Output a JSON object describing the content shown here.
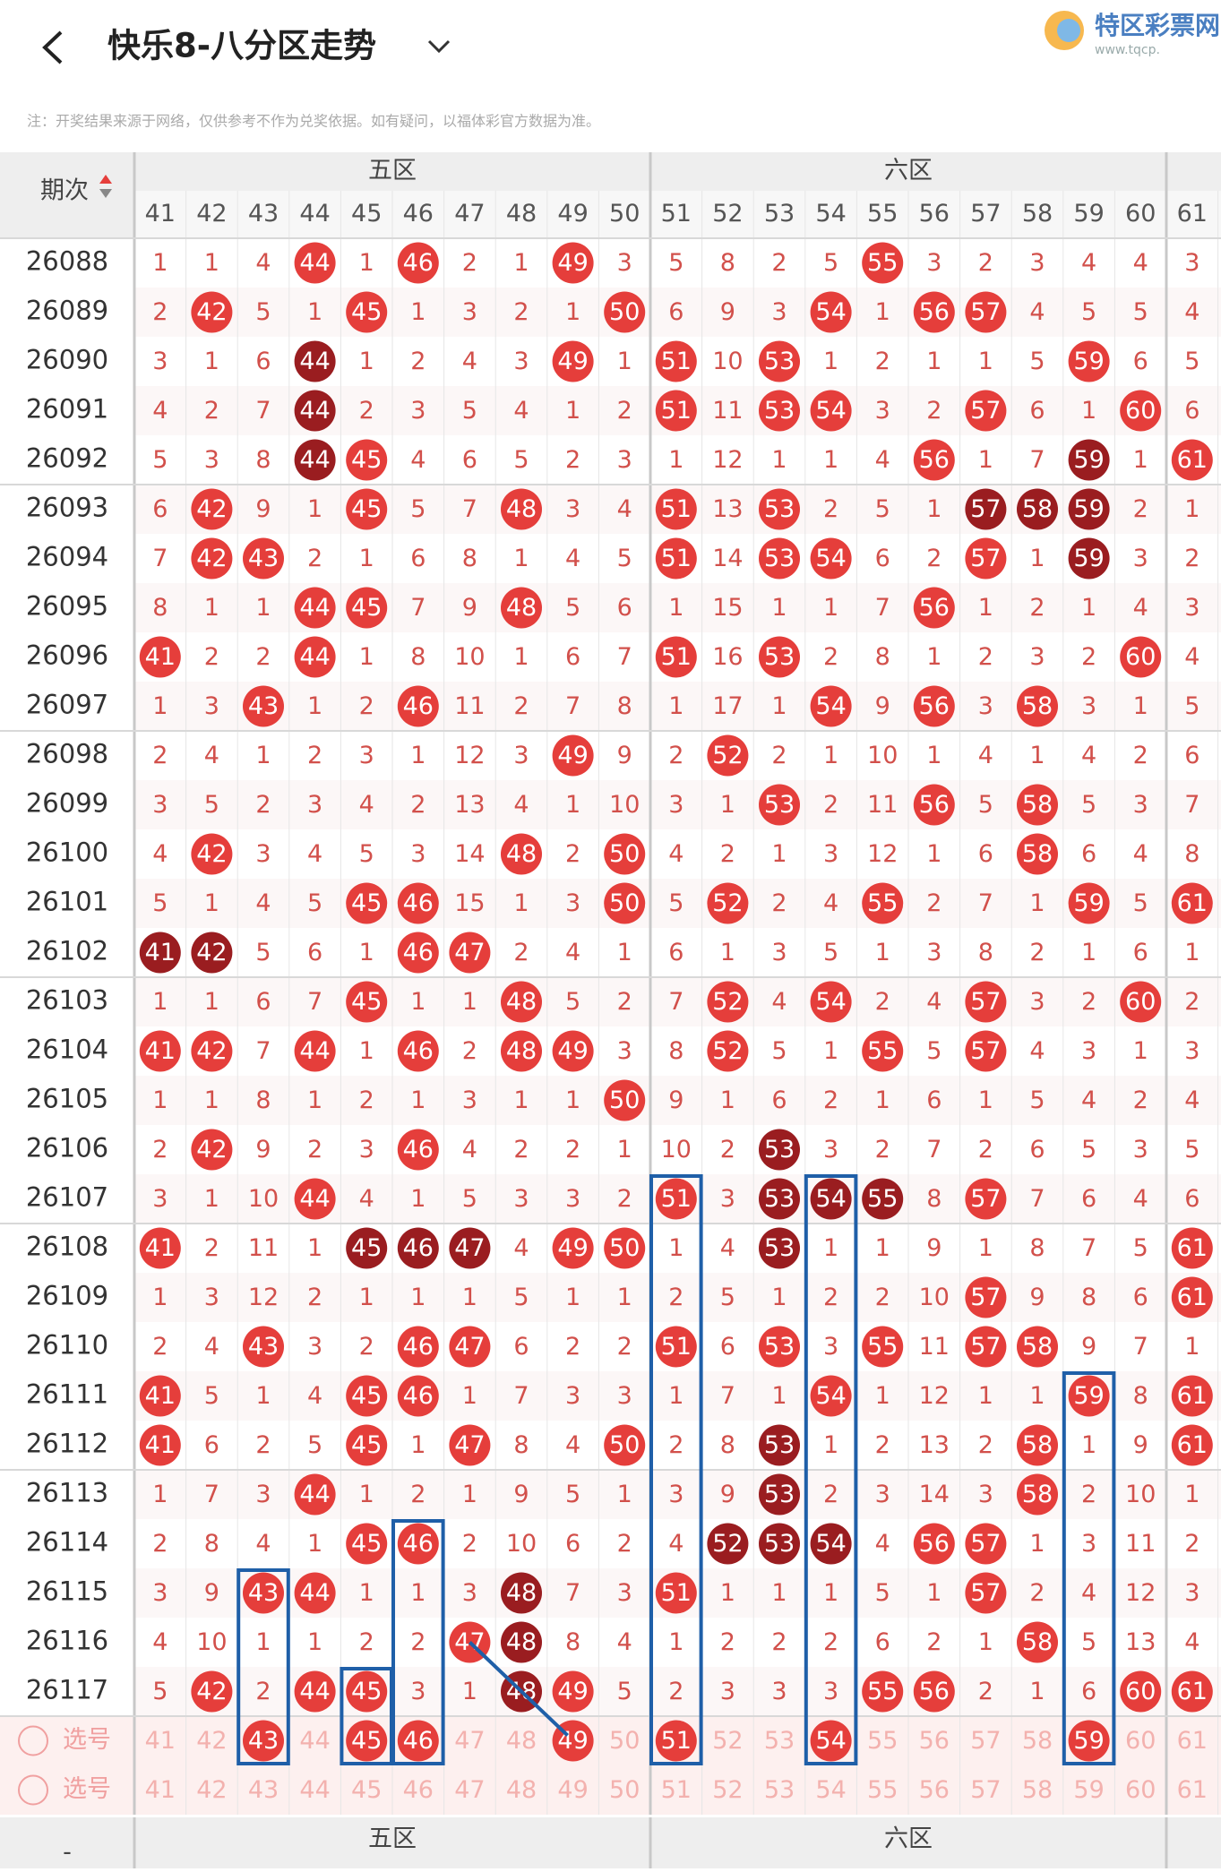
{
  "header": {
    "title": "快乐8-八分区走势",
    "logo": "特区彩票网",
    "logo_url": "www.tqcp."
  },
  "note": "注：开奖结果来源于网络，仅供参考不作为兑奖依据。如有疑问，以福体彩官方数据为准。",
  "table": {
    "period_label": "期次",
    "zones": [
      "五区",
      "六区"
    ],
    "columns": [
      41,
      42,
      43,
      44,
      45,
      46,
      47,
      48,
      49,
      50,
      51,
      52,
      53,
      54,
      55,
      56,
      57,
      58,
      59,
      60,
      61
    ],
    "rows": [
      {
        "period": "26088",
        "cells": [
          1,
          1,
          4,
          44,
          1,
          46,
          2,
          1,
          49,
          3,
          5,
          8,
          2,
          5,
          55,
          3,
          2,
          3,
          4,
          4,
          3
        ],
        "dark": []
      },
      {
        "period": "26089",
        "cells": [
          2,
          42,
          5,
          1,
          45,
          1,
          3,
          2,
          1,
          50,
          6,
          9,
          3,
          54,
          1,
          56,
          57,
          4,
          5,
          5,
          4
        ],
        "dark": []
      },
      {
        "period": "26090",
        "cells": [
          3,
          1,
          6,
          44,
          1,
          2,
          4,
          3,
          49,
          1,
          51,
          10,
          53,
          1,
          2,
          1,
          1,
          5,
          59,
          6,
          5
        ],
        "dark": [
          44
        ]
      },
      {
        "period": "26091",
        "cells": [
          4,
          2,
          7,
          44,
          2,
          3,
          5,
          4,
          1,
          2,
          51,
          11,
          53,
          54,
          3,
          2,
          57,
          6,
          1,
          60,
          6
        ],
        "dark": [
          44
        ]
      },
      {
        "period": "26092",
        "cells": [
          5,
          3,
          8,
          44,
          45,
          4,
          6,
          5,
          2,
          3,
          1,
          12,
          1,
          1,
          4,
          56,
          1,
          7,
          59,
          1,
          61
        ],
        "dark": [
          44,
          59
        ]
      },
      {
        "period": "26093",
        "cells": [
          6,
          42,
          9,
          1,
          45,
          5,
          7,
          48,
          3,
          4,
          51,
          13,
          53,
          2,
          5,
          1,
          57,
          58,
          59,
          2,
          1
        ],
        "dark": [
          57,
          58,
          59
        ]
      },
      {
        "period": "26094",
        "cells": [
          7,
          42,
          43,
          2,
          1,
          6,
          8,
          1,
          4,
          5,
          51,
          14,
          53,
          54,
          6,
          2,
          57,
          1,
          59,
          3,
          2
        ],
        "dark": [
          59
        ]
      },
      {
        "period": "26095",
        "cells": [
          8,
          1,
          1,
          44,
          45,
          7,
          9,
          48,
          5,
          6,
          1,
          15,
          1,
          1,
          7,
          56,
          1,
          2,
          1,
          4,
          3
        ],
        "dark": []
      },
      {
        "period": "26096",
        "cells": [
          41,
          2,
          2,
          44,
          1,
          8,
          10,
          1,
          6,
          7,
          51,
          16,
          53,
          2,
          8,
          1,
          2,
          3,
          2,
          60,
          4
        ],
        "dark": []
      },
      {
        "period": "26097",
        "cells": [
          1,
          3,
          43,
          1,
          2,
          46,
          11,
          2,
          7,
          8,
          1,
          17,
          1,
          54,
          9,
          56,
          3,
          58,
          3,
          1,
          5
        ],
        "dark": []
      },
      {
        "period": "26098",
        "cells": [
          2,
          4,
          1,
          2,
          3,
          1,
          12,
          3,
          49,
          9,
          2,
          52,
          2,
          1,
          10,
          1,
          4,
          1,
          4,
          2,
          6
        ],
        "dark": []
      },
      {
        "period": "26099",
        "cells": [
          3,
          5,
          2,
          3,
          4,
          2,
          13,
          4,
          1,
          10,
          3,
          1,
          53,
          2,
          11,
          56,
          5,
          58,
          5,
          3,
          7
        ],
        "dark": []
      },
      {
        "period": "26100",
        "cells": [
          4,
          42,
          3,
          4,
          5,
          3,
          14,
          48,
          2,
          50,
          4,
          2,
          1,
          3,
          12,
          1,
          6,
          58,
          6,
          4,
          8
        ],
        "dark": []
      },
      {
        "period": "26101",
        "cells": [
          5,
          1,
          4,
          5,
          45,
          46,
          15,
          1,
          3,
          50,
          5,
          52,
          2,
          4,
          55,
          2,
          7,
          1,
          59,
          5,
          61
        ],
        "dark": []
      },
      {
        "period": "26102",
        "cells": [
          41,
          42,
          5,
          6,
          1,
          46,
          47,
          2,
          4,
          1,
          6,
          1,
          3,
          5,
          1,
          3,
          8,
          2,
          1,
          6,
          1
        ],
        "dark": [
          41,
          42
        ]
      },
      {
        "period": "26103",
        "cells": [
          1,
          1,
          6,
          7,
          45,
          1,
          1,
          48,
          5,
          2,
          7,
          52,
          4,
          54,
          2,
          4,
          57,
          3,
          2,
          60,
          2
        ],
        "dark": []
      },
      {
        "period": "26104",
        "cells": [
          41,
          42,
          7,
          44,
          1,
          46,
          2,
          48,
          49,
          3,
          8,
          52,
          5,
          1,
          55,
          5,
          57,
          4,
          3,
          1,
          3
        ],
        "dark": []
      },
      {
        "period": "26105",
        "cells": [
          1,
          1,
          8,
          1,
          2,
          1,
          3,
          1,
          1,
          50,
          9,
          1,
          6,
          2,
          1,
          6,
          1,
          5,
          4,
          2,
          4
        ],
        "dark": []
      },
      {
        "period": "26106",
        "cells": [
          2,
          42,
          9,
          2,
          3,
          46,
          4,
          2,
          2,
          1,
          10,
          2,
          53,
          3,
          2,
          7,
          2,
          6,
          5,
          3,
          5
        ],
        "dark": [
          53
        ]
      },
      {
        "period": "26107",
        "cells": [
          3,
          1,
          10,
          44,
          4,
          1,
          5,
          3,
          3,
          2,
          51,
          3,
          53,
          54,
          55,
          8,
          57,
          7,
          6,
          4,
          6
        ],
        "dark": [
          53,
          54,
          55
        ]
      },
      {
        "period": "26108",
        "cells": [
          41,
          2,
          11,
          1,
          45,
          46,
          47,
          4,
          49,
          50,
          1,
          4,
          53,
          1,
          1,
          9,
          1,
          8,
          7,
          5,
          61
        ],
        "dark": [
          45,
          46,
          47,
          53
        ]
      },
      {
        "period": "26109",
        "cells": [
          1,
          3,
          12,
          2,
          1,
          1,
          1,
          5,
          1,
          1,
          2,
          5,
          1,
          2,
          2,
          10,
          57,
          9,
          8,
          6,
          61
        ],
        "dark": []
      },
      {
        "period": "26110",
        "cells": [
          2,
          4,
          43,
          3,
          2,
          46,
          47,
          6,
          2,
          2,
          51,
          6,
          53,
          3,
          55,
          11,
          57,
          58,
          9,
          7,
          1
        ],
        "dark": []
      },
      {
        "period": "26111",
        "cells": [
          41,
          5,
          1,
          4,
          45,
          46,
          1,
          7,
          3,
          3,
          1,
          7,
          1,
          54,
          1,
          12,
          1,
          1,
          59,
          8,
          61
        ],
        "dark": []
      },
      {
        "period": "26112",
        "cells": [
          41,
          6,
          2,
          5,
          45,
          1,
          47,
          8,
          4,
          50,
          2,
          8,
          53,
          1,
          2,
          13,
          2,
          58,
          1,
          9,
          61
        ],
        "dark": [
          53
        ]
      },
      {
        "period": "26113",
        "cells": [
          1,
          7,
          3,
          44,
          1,
          2,
          1,
          9,
          5,
          1,
          3,
          9,
          53,
          2,
          3,
          14,
          3,
          58,
          2,
          10,
          1
        ],
        "dark": [
          53
        ]
      },
      {
        "period": "26114",
        "cells": [
          2,
          8,
          4,
          1,
          45,
          46,
          2,
          10,
          6,
          2,
          4,
          52,
          53,
          54,
          4,
          56,
          57,
          1,
          3,
          11,
          2
        ],
        "dark": [
          52,
          53,
          54
        ]
      },
      {
        "period": "26115",
        "cells": [
          3,
          9,
          43,
          44,
          1,
          1,
          3,
          48,
          7,
          3,
          51,
          1,
          1,
          1,
          5,
          1,
          57,
          2,
          4,
          12,
          3
        ],
        "dark": [
          48
        ]
      },
      {
        "period": "26116",
        "cells": [
          4,
          10,
          1,
          1,
          2,
          2,
          47,
          48,
          8,
          4,
          1,
          2,
          2,
          2,
          6,
          2,
          1,
          58,
          5,
          13,
          4
        ],
        "dark": [
          48
        ]
      },
      {
        "period": "26117",
        "cells": [
          5,
          42,
          2,
          44,
          45,
          3,
          1,
          48,
          49,
          5,
          2,
          3,
          3,
          3,
          55,
          56,
          2,
          1,
          6,
          60,
          61
        ],
        "dark": [
          48
        ]
      }
    ],
    "select_rows": [
      {
        "label": "选号",
        "cells": [
          41,
          42,
          43,
          44,
          45,
          46,
          47,
          48,
          49,
          50,
          51,
          52,
          53,
          54,
          55,
          56,
          57,
          58,
          59,
          60,
          61
        ],
        "picked": [
          43,
          45,
          46,
          49,
          51,
          54,
          59
        ]
      },
      {
        "label": "选号",
        "cells": [
          41,
          42,
          43,
          44,
          45,
          46,
          47,
          48,
          49,
          50,
          51,
          52,
          53,
          54,
          55,
          56,
          57,
          58,
          59,
          60,
          61
        ],
        "picked": []
      }
    ]
  },
  "footer": {
    "label": "-",
    "zones": [
      "五区",
      "六区"
    ]
  }
}
